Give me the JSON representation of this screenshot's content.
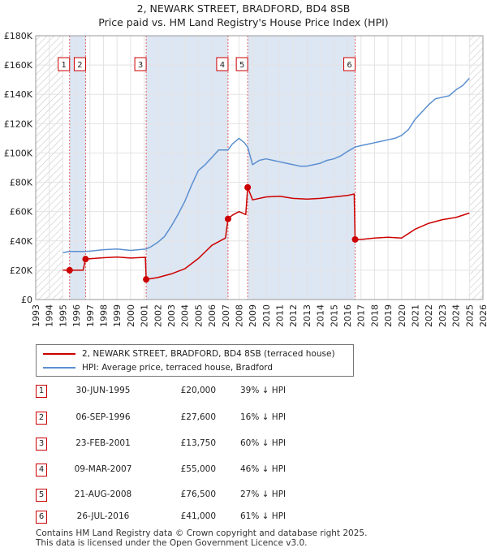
{
  "title_line1": "2, NEWARK STREET, BRADFORD, BD4 8SB",
  "title_line2": "Price paid vs. HM Land Registry's House Price Index (HPI)",
  "legend": {
    "property_label": "2, NEWARK STREET, BRADFORD, BD4 8SB (terraced house)",
    "hpi_label": "HPI: Average price, terraced house, Bradford"
  },
  "colors": {
    "property": "#cc0000",
    "hpi": "#5b8fd0",
    "shade": "#dde6f3",
    "hatch": "#c8c8c8"
  },
  "sales": [
    {
      "num": "1",
      "date": "30-JUN-1995",
      "price": "£20,000",
      "hpi": "39% ↓ HPI"
    },
    {
      "num": "2",
      "date": "06-SEP-1996",
      "price": "£27,600",
      "hpi": "16% ↓ HPI"
    },
    {
      "num": "3",
      "date": "23-FEB-2001",
      "price": "£13,750",
      "hpi": "60% ↓ HPI"
    },
    {
      "num": "4",
      "date": "09-MAR-2007",
      "price": "£55,000",
      "hpi": "46% ↓ HPI"
    },
    {
      "num": "5",
      "date": "21-AUG-2008",
      "price": "£76,500",
      "hpi": "27% ↓ HPI"
    },
    {
      "num": "6",
      "date": "26-JUL-2016",
      "price": "£41,000",
      "hpi": "61% ↓ HPI"
    }
  ],
  "footer_line1": "Contains HM Land Registry data © Crown copyright and database right 2025.",
  "footer_line2": "This data is licensed under the Open Government Licence v3.0.",
  "chart_data": {
    "type": "line",
    "x_range": [
      1993,
      2026
    ],
    "ylim": [
      0,
      180000
    ],
    "y_ticks": [
      {
        "value": 0,
        "label": "£0"
      },
      {
        "value": 20000,
        "label": "£20K"
      },
      {
        "value": 40000,
        "label": "£40K"
      },
      {
        "value": 60000,
        "label": "£60K"
      },
      {
        "value": 80000,
        "label": "£80K"
      },
      {
        "value": 100000,
        "label": "£100K"
      },
      {
        "value": 120000,
        "label": "£120K"
      },
      {
        "value": 140000,
        "label": "£140K"
      },
      {
        "value": 160000,
        "label": "£160K"
      },
      {
        "value": 180000,
        "label": "£180K"
      }
    ],
    "x_ticks": [
      "1993",
      "1994",
      "1995",
      "1996",
      "1997",
      "1998",
      "1999",
      "2000",
      "2001",
      "2002",
      "2003",
      "2004",
      "2005",
      "2006",
      "2007",
      "2008",
      "2009",
      "2010",
      "2011",
      "2012",
      "2013",
      "2014",
      "2015",
      "2016",
      "2017",
      "2018",
      "2019",
      "2020",
      "2021",
      "2022",
      "2023",
      "2024",
      "2025",
      "2026"
    ],
    "hatched_ranges": [
      [
        1993,
        1995.0
      ],
      [
        2025.0,
        2026
      ]
    ],
    "grid": true,
    "sales": [
      {
        "label": "1",
        "x": 1995.5,
        "y": 20000
      },
      {
        "label": "2",
        "x": 1996.68,
        "y": 27600
      },
      {
        "label": "3",
        "x": 2001.15,
        "y": 13750
      },
      {
        "label": "4",
        "x": 2007.19,
        "y": 55000
      },
      {
        "label": "5",
        "x": 2008.64,
        "y": 76500
      },
      {
        "label": "6",
        "x": 2016.57,
        "y": 41000
      }
    ],
    "shaded_ranges": [
      [
        1995.5,
        1996.68
      ],
      [
        2001.15,
        2007.19
      ],
      [
        2008.64,
        2016.57
      ]
    ],
    "series": [
      {
        "name": "HPI: Average price, terraced house, Bradford",
        "x": [
          1995.0,
          1995.5,
          1996.0,
          1996.68,
          1997.0,
          1998.0,
          1999.0,
          2000.0,
          2001.15,
          2001.5,
          2002.0,
          2002.5,
          2003.0,
          2003.5,
          2004.0,
          2004.5,
          2005.0,
          2005.5,
          2006.0,
          2006.5,
          2007.19,
          2007.5,
          2008.0,
          2008.4,
          2008.64,
          2009.0,
          2009.5,
          2010.0,
          2010.5,
          2011.0,
          2011.5,
          2012.0,
          2012.5,
          2013.0,
          2013.5,
          2014.0,
          2014.5,
          2015.0,
          2015.5,
          2016.0,
          2016.57,
          2017.0,
          2017.5,
          2018.0,
          2018.5,
          2019.0,
          2019.5,
          2020.0,
          2020.5,
          2021.0,
          2021.5,
          2022.0,
          2022.5,
          2023.0,
          2023.5,
          2024.0,
          2024.5,
          2025.0
        ],
        "values": [
          32000,
          32800,
          32800,
          32800,
          33000,
          34000,
          34500,
          33500,
          34500,
          36000,
          39000,
          43000,
          50000,
          58000,
          67000,
          78000,
          88000,
          92000,
          97000,
          102000,
          102000,
          106000,
          110000,
          107000,
          104000,
          92000,
          95000,
          96000,
          95000,
          94000,
          93000,
          92000,
          91000,
          91000,
          92000,
          93000,
          95000,
          96000,
          98000,
          101000,
          104000,
          105000,
          106000,
          107000,
          108000,
          109000,
          110000,
          112000,
          116000,
          123000,
          128000,
          133000,
          137000,
          138000,
          139000,
          143000,
          146000,
          151000
        ]
      },
      {
        "name": "2, NEWARK STREET, BRADFORD, BD4 8SB (terraced house)",
        "x": [
          1995.0,
          1995.5,
          1996.0,
          1996.5,
          1996.68,
          1997.0,
          1998.0,
          1999.0,
          2000.0,
          2001.1,
          2001.15,
          2002.0,
          2003.0,
          2004.0,
          2005.0,
          2006.0,
          2007.0,
          2007.19,
          2007.5,
          2008.0,
          2008.5,
          2008.64,
          2009.0,
          2010.0,
          2011.0,
          2012.0,
          2013.0,
          2014.0,
          2015.0,
          2016.0,
          2016.5,
          2016.57,
          2017.0,
          2018.0,
          2019.0,
          2020.0,
          2021.0,
          2022.0,
          2023.0,
          2024.0,
          2025.0
        ],
        "values": [
          20000,
          20000,
          20000,
          20000,
          27600,
          27800,
          28500,
          29000,
          28300,
          28800,
          13750,
          15000,
          17500,
          21000,
          28000,
          37000,
          42000,
          55000,
          57500,
          60000,
          58000,
          76500,
          68000,
          70000,
          70500,
          69000,
          68500,
          69000,
          70000,
          71000,
          72000,
          41000,
          41000,
          42000,
          42500,
          42000,
          48000,
          52000,
          54500,
          56000,
          59000
        ]
      }
    ]
  }
}
